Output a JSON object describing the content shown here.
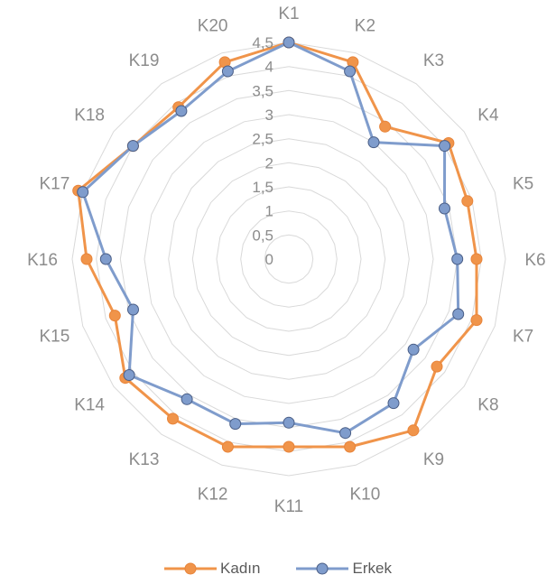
{
  "chart_data": {
    "type": "radar",
    "categories": [
      "K1",
      "K2",
      "K3",
      "K4",
      "K5",
      "K6",
      "K7",
      "K8",
      "K9",
      "K10",
      "K11",
      "K12",
      "K13",
      "K14",
      "K15",
      "K16",
      "K17",
      "K18",
      "K19",
      "K20"
    ],
    "rlim": [
      0,
      4.5
    ],
    "ticks": [
      "0",
      "0,5",
      "1",
      "1,5",
      "2",
      "2,5",
      "3",
      "3,5",
      "4",
      "4,5"
    ],
    "tick_values": [
      0,
      0.5,
      1,
      1.5,
      2,
      2.5,
      3,
      3.5,
      4,
      4.5
    ],
    "grid": true,
    "legend_position": "bottom",
    "series": [
      {
        "name": "Kadın",
        "color": "#F0944A",
        "values": [
          4.5,
          4.3,
          3.4,
          4.1,
          3.9,
          3.9,
          4.1,
          3.8,
          4.4,
          4.1,
          3.9,
          4.1,
          4.1,
          4.2,
          3.8,
          4.2,
          4.6,
          4.0,
          3.9,
          4.3
        ]
      },
      {
        "name": "Erkek",
        "color": "#7F9CCC",
        "values": [
          4.5,
          4.1,
          3.0,
          4.0,
          3.4,
          3.5,
          3.7,
          3.2,
          3.7,
          3.8,
          3.4,
          3.6,
          3.6,
          4.1,
          3.4,
          3.8,
          4.5,
          4.0,
          3.8,
          4.1
        ]
      }
    ]
  }
}
